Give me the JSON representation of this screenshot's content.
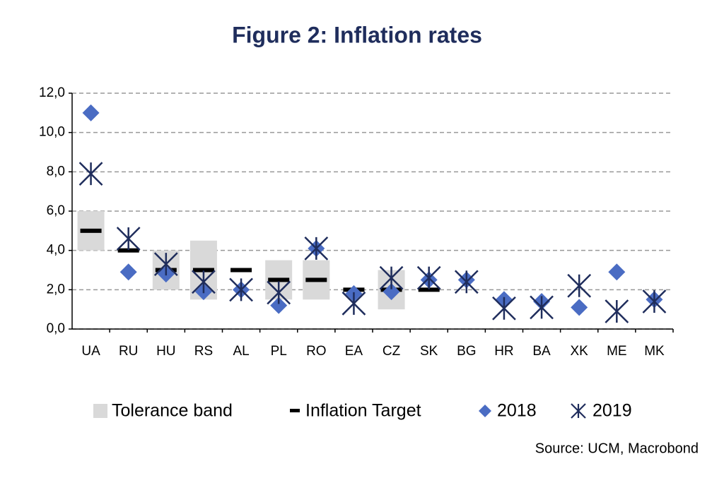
{
  "chart_data": {
    "type": "scatter",
    "title": "Figure 2: Inflation rates",
    "source": "Source: UCM, Macrobond",
    "categories": [
      "UA",
      "RU",
      "HU",
      "RS",
      "AL",
      "PL",
      "RO",
      "EA",
      "CZ",
      "SK",
      "BG",
      "HR",
      "BA",
      "XK",
      "ME",
      "MK"
    ],
    "ylim": [
      0,
      12
    ],
    "yticks": [
      {
        "value": 0,
        "label": "0,0"
      },
      {
        "value": 2,
        "label": "2,0"
      },
      {
        "value": 4,
        "label": "4,0"
      },
      {
        "value": 6,
        "label": "6,0"
      },
      {
        "value": 8,
        "label": "8,0"
      },
      {
        "value": 10,
        "label": "10,0"
      },
      {
        "value": 12,
        "label": "12,0"
      }
    ],
    "grid": true,
    "series": [
      {
        "name": "Tolerance band",
        "marker": "band",
        "color": "#d9d9d9",
        "low": [
          4,
          null,
          2,
          1.5,
          null,
          1.5,
          1.5,
          null,
          1,
          null,
          null,
          null,
          null,
          null,
          null,
          null
        ],
        "high": [
          6,
          null,
          4,
          4.5,
          null,
          3.5,
          3.5,
          null,
          3,
          null,
          null,
          null,
          null,
          null,
          null,
          null
        ]
      },
      {
        "name": "Inflation Target",
        "marker": "dash",
        "color": "#000000",
        "values": [
          5,
          4,
          3,
          3,
          3,
          2.5,
          2.5,
          2,
          2,
          2,
          null,
          null,
          null,
          null,
          null,
          null
        ]
      },
      {
        "name": "2018",
        "marker": "diamond",
        "color": "#4a6cc3",
        "values": [
          11,
          2.9,
          2.8,
          1.9,
          2,
          1.2,
          4.1,
          1.8,
          1.9,
          2.5,
          2.5,
          1.5,
          1.4,
          1.1,
          2.9,
          1.5
        ]
      },
      {
        "name": "2019",
        "marker": "asterisk",
        "color": "#1f2d5c",
        "values": [
          7.9,
          4.6,
          3.3,
          2.4,
          2,
          1.85,
          4.1,
          1.3,
          2.6,
          2.6,
          2.4,
          1.05,
          1.1,
          2.2,
          0.9,
          1.4
        ]
      }
    ]
  }
}
